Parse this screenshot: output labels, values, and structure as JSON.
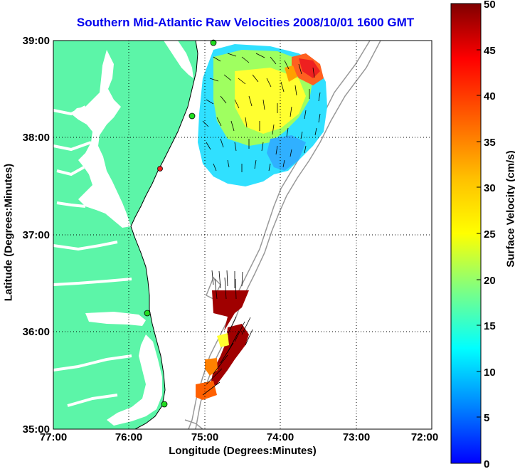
{
  "title": "Southern Mid-Atlantic Raw Velocities 2008/10/01 1600 GMT",
  "axes": {
    "xlabel": "Longitude (Degrees:Minutes)",
    "ylabel": "Latitude (Degrees:Minutes)",
    "xticks": [
      "77:00",
      "76:00",
      "75:00",
      "74:00",
      "73:00",
      "72:00"
    ],
    "yticks": [
      "39:00",
      "38:00",
      "37:00",
      "36:00",
      "35:00"
    ],
    "lon_range": [
      -77,
      -72
    ],
    "lat_range": [
      35,
      39
    ],
    "grid": "dotted"
  },
  "colorbar": {
    "label": "Surface Velocity (cm/s)",
    "ticks": [
      "50",
      "45",
      "40",
      "35",
      "30",
      "25",
      "20",
      "15",
      "10",
      "5",
      "0"
    ],
    "range": [
      0,
      50
    ],
    "colormap": "jet"
  },
  "colors": {
    "title": "#0000ee",
    "land": "#5cf5a8",
    "bathymetry_contour": "#999999",
    "station_marker": "#22dd22",
    "station_marker_inactive": "#ee2222"
  }
}
